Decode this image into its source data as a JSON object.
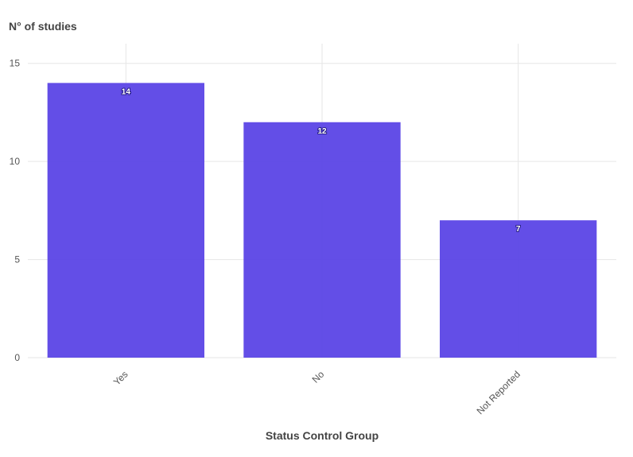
{
  "chart_data": {
    "type": "bar",
    "title": "",
    "ylabel": "N° of studies",
    "xlabel": "Status Control Group",
    "categories": [
      "Yes",
      "No",
      "Not Reported"
    ],
    "values": [
      14,
      12,
      7
    ],
    "data_labels": [
      "14",
      "12",
      "7"
    ],
    "ylim": [
      0,
      16
    ],
    "yticks": [
      0,
      5,
      10,
      15
    ],
    "ytick_labels": [
      "0",
      "5",
      "10",
      "15"
    ],
    "grid": true,
    "legend": "none",
    "bar_color": "#5b45e6",
    "grid_color": "#e6e6e6"
  }
}
